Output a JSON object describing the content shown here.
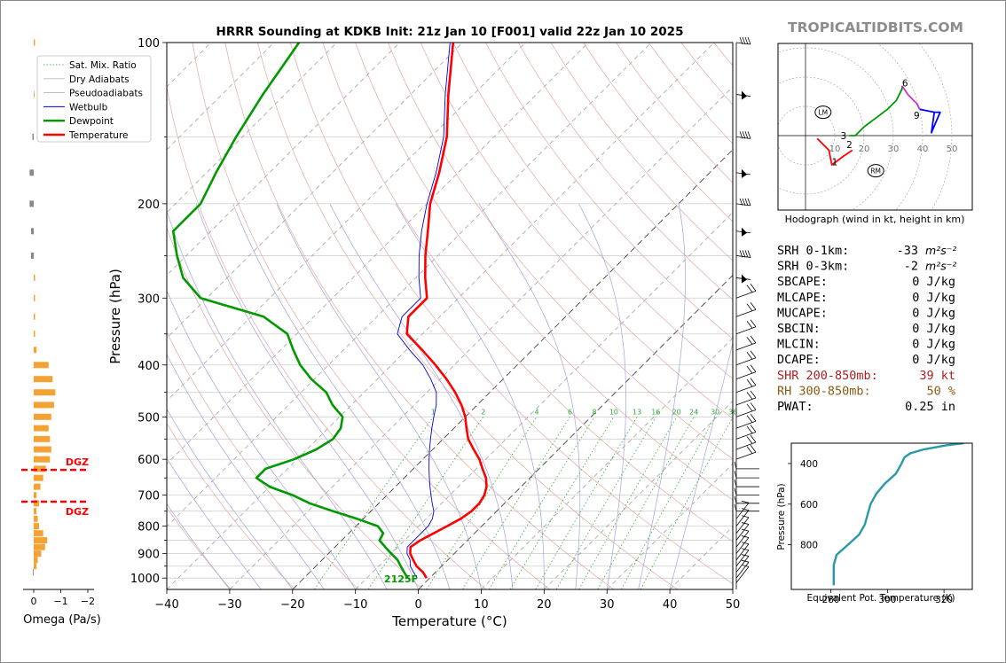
{
  "site": "TROPICALTIDBITS.COM",
  "chart_data": [
    {
      "type": "line",
      "name": "skew-t",
      "title": "HRRR Sounding at KDKB Init: 21z Jan 10 [F001] valid 22z Jan 10 2025",
      "xlabel": "Temperature (°C)",
      "ylabel": "Pressure (hPa)",
      "xlim": [
        -40,
        50
      ],
      "ylim": [
        1050,
        100
      ],
      "y_scale": "log",
      "skew": "45-degree",
      "x_ticks": [
        -40,
        -30,
        -20,
        -10,
        0,
        10,
        20,
        30,
        40,
        50
      ],
      "x_tick_labels": [
        "−40",
        "−30",
        "−20",
        "−10",
        "0",
        "10",
        "20",
        "30",
        "40",
        "50"
      ],
      "y_ticks": [
        100,
        200,
        300,
        400,
        500,
        600,
        700,
        800,
        900,
        1000
      ],
      "legend": {
        "position": "upper-left",
        "entries": [
          {
            "label": "Sat. Mix. Ratio",
            "color": "#2ca02c",
            "style": "dotted"
          },
          {
            "label": "Dry Adiabats",
            "color": "#bbbbbb",
            "style": "solid"
          },
          {
            "label": "Pseudoadiabats",
            "color": "#aaaaaa",
            "style": "solid"
          },
          {
            "label": "Wetbulb",
            "color": "#0000dd",
            "style": "solid"
          },
          {
            "label": "Dewpoint",
            "color": "#009900",
            "style": "solid"
          },
          {
            "label": "Temperature",
            "color": "#ff0000",
            "style": "solid"
          }
        ]
      },
      "mixing_ratio_labels": [
        "1",
        "2",
        "4",
        "6",
        "8",
        "10",
        "13",
        "16",
        "20",
        "24",
        "30",
        "36"
      ],
      "mixing_ratio_values": [
        1,
        2,
        4,
        6,
        8,
        10,
        13,
        16,
        20,
        24,
        30,
        36
      ],
      "surface_label": "2125F",
      "series": [
        {
          "name": "Temperature",
          "color": "#ff0000",
          "p": [
            1000,
            975,
            950,
            925,
            900,
            875,
            850,
            825,
            800,
            775,
            750,
            725,
            700,
            675,
            650,
            625,
            600,
            575,
            550,
            525,
            500,
            475,
            450,
            425,
            400,
            375,
            350,
            325,
            300,
            275,
            250,
            225,
            200,
            175,
            150,
            125,
            100
          ],
          "t": [
            -0.5,
            -2.0,
            -4.0,
            -5.5,
            -7.0,
            -8.0,
            -7.5,
            -6.5,
            -5.5,
            -4.5,
            -4.0,
            -4.0,
            -4.5,
            -5.5,
            -7.0,
            -9.0,
            -11.0,
            -13.5,
            -16.0,
            -18.0,
            -20.0,
            -22.5,
            -25.5,
            -29.0,
            -33.0,
            -37.5,
            -42.5,
            -45.0,
            -45.0,
            -48.5,
            -52.0,
            -55.5,
            -59.5,
            -63.0,
            -67.5,
            -74.0,
            -81.5
          ]
        },
        {
          "name": "Wetbulb",
          "color": "#0000dd",
          "p": [
            1000,
            975,
            950,
            925,
            900,
            875,
            850,
            825,
            800,
            775,
            750,
            725,
            700,
            675,
            650,
            625,
            600,
            575,
            550,
            525,
            500,
            475,
            450,
            425,
            400,
            375,
            350,
            325,
            300,
            275,
            250,
            225,
            200,
            175,
            150,
            125,
            100
          ],
          "t": [
            -2.0,
            -3.5,
            -5.0,
            -6.0,
            -7.5,
            -8.5,
            -8.5,
            -8.5,
            -8.5,
            -9.0,
            -10.0,
            -11.5,
            -13.0,
            -14.5,
            -16.0,
            -17.5,
            -19.0,
            -20.5,
            -22.0,
            -23.5,
            -25.0,
            -26.5,
            -28.5,
            -31.5,
            -35.0,
            -39.5,
            -44.0,
            -46.0,
            -46.0,
            -49.5,
            -53.0,
            -56.5,
            -60.0,
            -63.5,
            -68.0,
            -74.5,
            -82.0
          ]
        },
        {
          "name": "Dewpoint",
          "color": "#009900",
          "p": [
            1000,
            975,
            950,
            925,
            900,
            875,
            850,
            825,
            800,
            775,
            750,
            725,
            700,
            675,
            650,
            625,
            600,
            575,
            550,
            525,
            500,
            475,
            450,
            425,
            400,
            375,
            350,
            325,
            300,
            275,
            250,
            225,
            200,
            175,
            150,
            125,
            100
          ],
          "t": [
            -3.5,
            -5.0,
            -6.5,
            -8.0,
            -10.0,
            -12.0,
            -14.0,
            -14.5,
            -16.5,
            -21.0,
            -26.0,
            -31.0,
            -35.0,
            -40.0,
            -43.5,
            -43.5,
            -40.5,
            -38.5,
            -37.5,
            -38.0,
            -39.5,
            -43.0,
            -46.0,
            -50.5,
            -54.5,
            -58.0,
            -61.5,
            -68.0,
            -81.0,
            -87.0,
            -91.5,
            -96.0,
            -96.0,
            -98.5,
            -101.0,
            -103.5,
            -106.0
          ]
        }
      ]
    },
    {
      "type": "bar",
      "name": "omega",
      "xlabel": "Omega (Pa/s)",
      "x_ticks": [
        0,
        -1,
        -2
      ],
      "x_tick_labels": [
        "0",
        "−1",
        "−2"
      ],
      "dgz_label": "DGZ",
      "dgz_bounds_hpa": [
        628,
        720
      ],
      "series": [
        {
          "p": [
            1000,
            975,
            950,
            925,
            900,
            875,
            850,
            825,
            800,
            775,
            750,
            725,
            700,
            675,
            650,
            625,
            600,
            575,
            550,
            525,
            500,
            475,
            450,
            425,
            400,
            375,
            350,
            325,
            300,
            275,
            250,
            225,
            200,
            175,
            150,
            125,
            100
          ],
          "omega": [
            0.0,
            0.03,
            -0.1,
            -0.15,
            -0.28,
            -0.42,
            -0.5,
            -0.35,
            -0.2,
            -0.15,
            -0.1,
            -0.2,
            -0.1,
            -0.25,
            -0.35,
            -0.45,
            -0.6,
            -0.65,
            -0.6,
            -0.55,
            -0.65,
            -0.75,
            -0.8,
            -0.7,
            -0.55,
            -0.1,
            -0.05,
            -0.05,
            -0.05,
            -0.05,
            0.1,
            0.1,
            0.15,
            0.15,
            0.05,
            -0.03,
            -0.05
          ]
        }
      ]
    },
    {
      "type": "line",
      "name": "hodograph",
      "xlabel": "Hodograph (wind in kt, height in km)",
      "ring_labels": [
        "10",
        "20",
        "30",
        "40",
        "50"
      ],
      "ring_values": [
        10,
        20,
        30,
        40,
        50
      ],
      "height_labels": [
        {
          "label": "1",
          "u": 10,
          "v": -9
        },
        {
          "label": "2",
          "u": 15,
          "v": -3
        },
        {
          "label": "3",
          "u": 13,
          "v": 0
        },
        {
          "label": "6",
          "u": 34,
          "v": 18
        },
        {
          "label": "9",
          "u": 38,
          "v": 7
        }
      ],
      "storm_motion": [
        {
          "label": "LM",
          "u": 6,
          "v": 8
        },
        {
          "label": "RM",
          "u": 24,
          "v": -12
        }
      ],
      "segments": [
        {
          "color": "#ff0000",
          "points": [
            [
              4,
              -1
            ],
            [
              8,
              -5
            ],
            [
              9,
              -10
            ],
            [
              13,
              -7
            ],
            [
              16,
              -5
            ]
          ]
        },
        {
          "color": "#009900",
          "points": [
            [
              15,
              0
            ],
            [
              17,
              0
            ],
            [
              18,
              1
            ],
            [
              20,
              3
            ],
            [
              24,
              6
            ],
            [
              28,
              9
            ],
            [
              31,
              12
            ],
            [
              32,
              14
            ],
            [
              33,
              16
            ],
            [
              33,
              17
            ]
          ]
        },
        {
          "color": "#cc33cc",
          "points": [
            [
              33,
              17
            ],
            [
              35,
              14
            ],
            [
              38,
              11
            ],
            [
              39,
              9
            ]
          ]
        },
        {
          "color": "#0000ff",
          "points": [
            [
              39,
              9
            ],
            [
              44,
              8
            ],
            [
              46,
              8
            ],
            [
              43,
              1
            ],
            [
              44,
              8
            ]
          ]
        }
      ]
    },
    {
      "type": "line",
      "name": "theta-e",
      "xlabel": "Equivalent Pot. Temperature (K)",
      "ylabel": "Pressure (hPa)",
      "xlim": [
        266,
        330
      ],
      "ylim": [
        1020,
        300
      ],
      "x_ticks": [
        280,
        300,
        320
      ],
      "y_ticks": [
        400,
        600,
        800
      ],
      "color": "#2899aa",
      "series": [
        {
          "p": [
            1000,
            950,
            900,
            850,
            800,
            750,
            700,
            650,
            600,
            550,
            500,
            450,
            400,
            370,
            350,
            330,
            310,
            300
          ],
          "theta_e": [
            281,
            281,
            281,
            282,
            286,
            290,
            292,
            293,
            294,
            296,
            299,
            303,
            305,
            306,
            308,
            313,
            321,
            327
          ]
        }
      ]
    }
  ],
  "indices": [
    {
      "label": "SRH 0-1km:",
      "value": "-33",
      "unit": "m²s⁻²",
      "color": "#000000"
    },
    {
      "label": "SRH 0-3km:",
      "value": "-2",
      "unit": "m²s⁻²",
      "color": "#000000"
    },
    {
      "label": "SBCAPE:",
      "value": "0 J/kg",
      "unit": "",
      "color": "#000000"
    },
    {
      "label": "MLCAPE:",
      "value": "0 J/kg",
      "unit": "",
      "color": "#000000"
    },
    {
      "label": "MUCAPE:",
      "value": "0 J/kg",
      "unit": "",
      "color": "#000000"
    },
    {
      "label": "SBCIN:",
      "value": "0 J/kg",
      "unit": "",
      "color": "#000000"
    },
    {
      "label": "MLCIN:",
      "value": "0 J/kg",
      "unit": "",
      "color": "#000000"
    },
    {
      "label": "DCAPE:",
      "value": "0 J/kg",
      "unit": "",
      "color": "#000000"
    },
    {
      "label": "SHR 200-850mb:",
      "value": "39 kt",
      "unit": "",
      "color": "#aa1f1f"
    },
    {
      "label": "RH 300-850mb:",
      "value": "50 %",
      "unit": "",
      "color": "#8a5a14"
    },
    {
      "label": "PWAT:",
      "value": "0.25 in",
      "unit": "",
      "color": "#000000"
    }
  ],
  "colors": {
    "temperature": "#ff0000",
    "dewpoint": "#009900",
    "wetbulb": "#0000dd",
    "omega": "#f5a235",
    "dgz": "#ff0000",
    "theta_e": "#2899aa"
  }
}
